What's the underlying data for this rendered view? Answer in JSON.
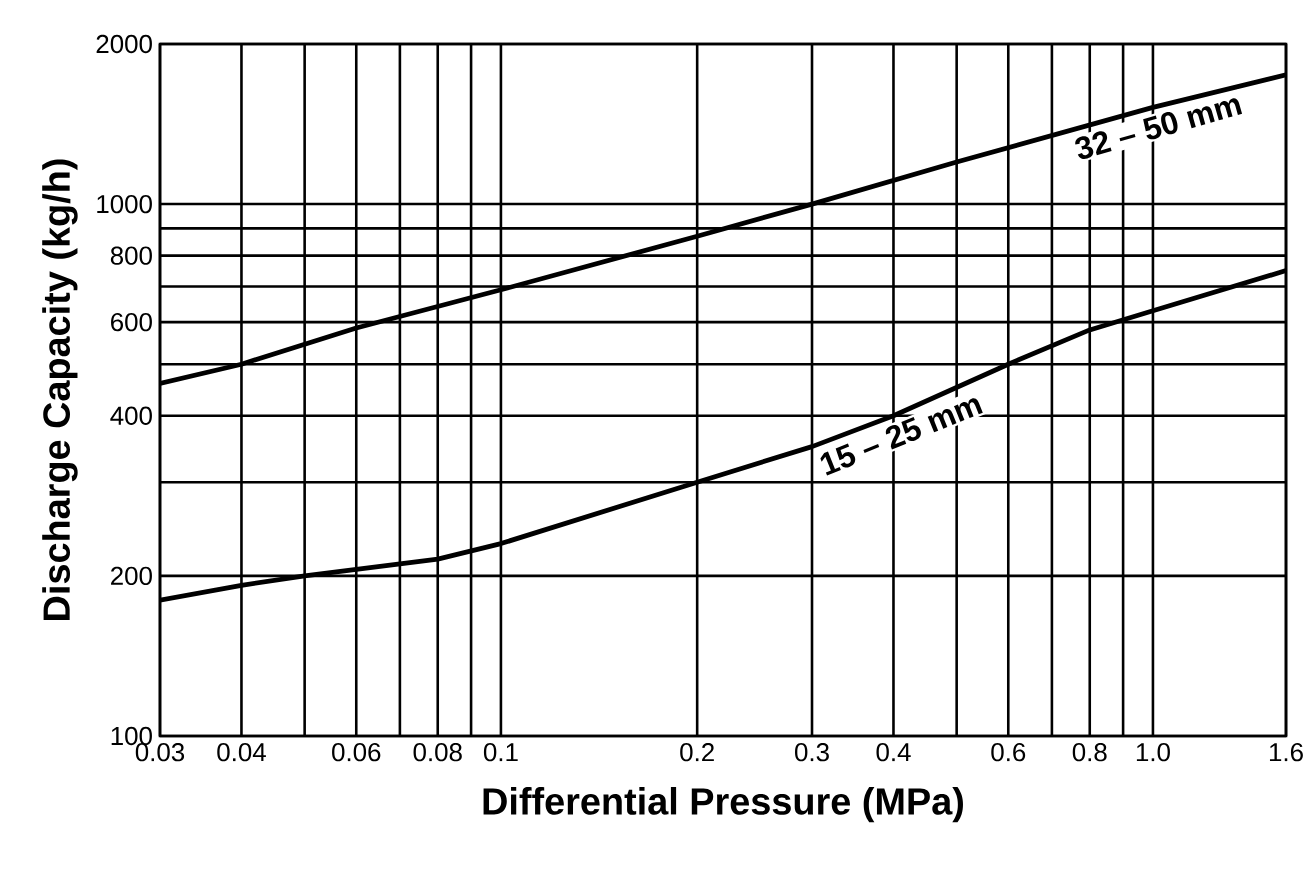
{
  "chart_data": {
    "type": "line",
    "xlabel": "Differential Pressure (MPa)",
    "ylabel": "Discharge Capacity (kg/h)",
    "log": "xy",
    "grid": true,
    "marker": "none",
    "line_style": "solid",
    "xlim": [
      0.03,
      1.6
    ],
    "ylim": [
      100,
      2000
    ],
    "xticks": [
      {
        "value": 0.03,
        "label": "0.03"
      },
      {
        "value": 0.04,
        "label": "0.04"
      },
      {
        "value": 0.05,
        "label": null
      },
      {
        "value": 0.06,
        "label": "0.06"
      },
      {
        "value": 0.07,
        "label": null
      },
      {
        "value": 0.08,
        "label": "0.08"
      },
      {
        "value": 0.09,
        "label": null
      },
      {
        "value": 0.1,
        "label": "0.1"
      },
      {
        "value": 0.2,
        "label": "0.2"
      },
      {
        "value": 0.3,
        "label": "0.3"
      },
      {
        "value": 0.4,
        "label": "0.4"
      },
      {
        "value": 0.5,
        "label": null
      },
      {
        "value": 0.6,
        "label": "0.6"
      },
      {
        "value": 0.7,
        "label": null
      },
      {
        "value": 0.8,
        "label": "0.8"
      },
      {
        "value": 0.9,
        "label": null
      },
      {
        "value": 1.0,
        "label": "1.0"
      },
      {
        "value": 1.6,
        "label": "1.6"
      }
    ],
    "yticks": [
      100,
      200,
      {
        "value": 300,
        "label": null
      },
      400,
      {
        "value": 500,
        "label": null
      },
      600,
      {
        "value": 700,
        "label": null
      },
      800,
      {
        "value": 900,
        "label": null
      },
      1000,
      2000
    ],
    "series": [
      {
        "name": "32 – 50 mm",
        "color": "#000000",
        "x": [
          0.03,
          0.04,
          0.06,
          0.1,
          0.2,
          0.3,
          0.5,
          1.0,
          1.6
        ],
        "values": [
          460,
          500,
          585,
          690,
          870,
          1000,
          1200,
          1520,
          1750
        ]
      },
      {
        "name": "15 – 25 mm",
        "color": "#000000",
        "x": [
          0.03,
          0.04,
          0.05,
          0.08,
          0.1,
          0.2,
          0.3,
          0.4,
          0.6,
          0.8,
          1.0,
          1.6
        ],
        "values": [
          180,
          192,
          200,
          215,
          230,
          300,
          350,
          400,
          500,
          580,
          630,
          750
        ]
      }
    ]
  }
}
